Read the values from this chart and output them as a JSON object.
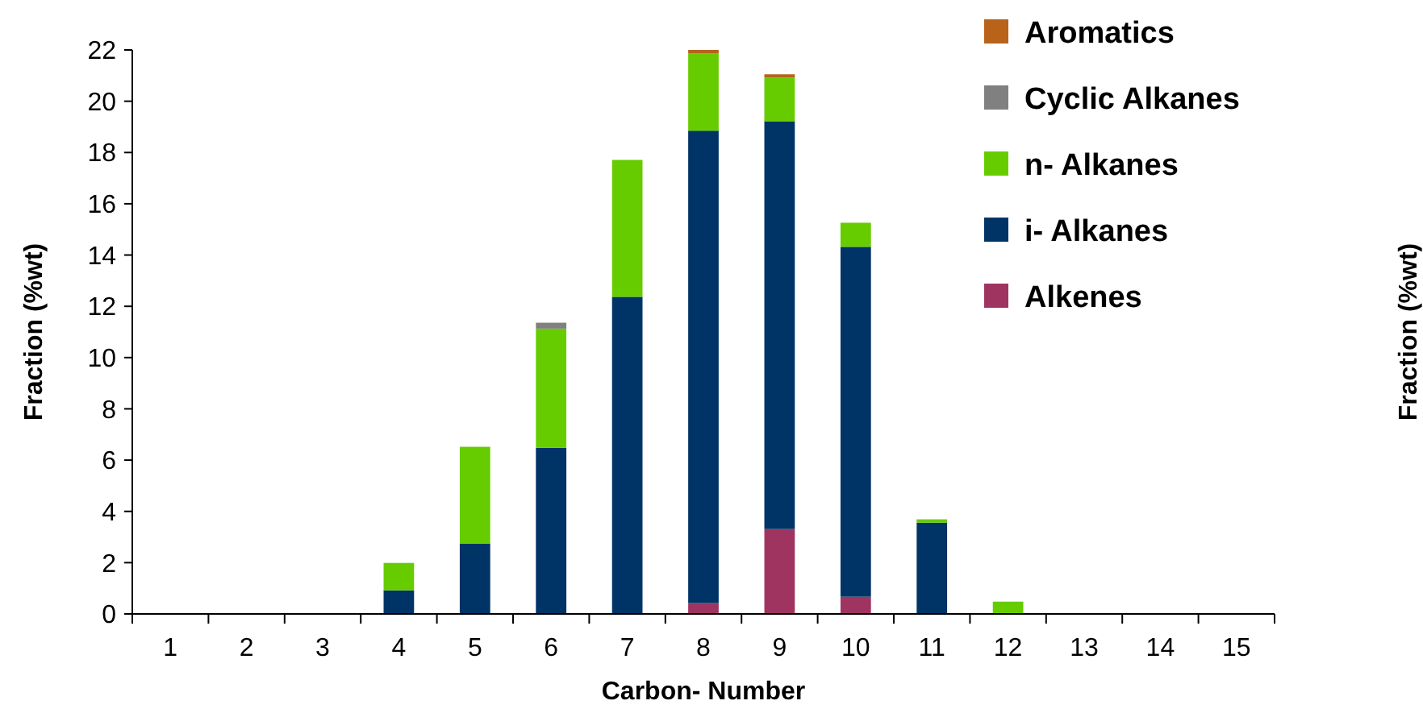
{
  "chart_data": {
    "type": "bar",
    "stacked": true,
    "xlabel": "Carbon- Number",
    "ylabel": "Fraction (%wt)",
    "y2label": "Fraction (%wt)",
    "categories": [
      "1",
      "2",
      "3",
      "4",
      "5",
      "6",
      "7",
      "8",
      "9",
      "10",
      "11",
      "12",
      "13",
      "14",
      "15"
    ],
    "ylim": [
      0,
      22
    ],
    "yticks": [
      0,
      2,
      4,
      6,
      8,
      10,
      12,
      14,
      16,
      18,
      20,
      22
    ],
    "grid": false,
    "legend": "top right",
    "series": [
      {
        "name": "Alkenes",
        "color": "#a03461",
        "values": [
          0,
          0,
          0,
          0,
          0,
          0,
          0,
          0.42,
          3.31,
          0.67,
          0,
          0,
          0,
          0,
          0
        ]
      },
      {
        "name": "i- Alkanes",
        "color": "#003366",
        "values": [
          0,
          0,
          0,
          0.92,
          2.75,
          6.48,
          12.37,
          18.43,
          15.91,
          13.65,
          3.56,
          0,
          0,
          0,
          0
        ]
      },
      {
        "name": "n- Alkanes",
        "color": "#66cc00",
        "values": [
          0,
          0,
          0,
          1.07,
          3.77,
          4.65,
          5.34,
          3.02,
          1.7,
          0.94,
          0.13,
          0.48,
          0,
          0,
          0
        ]
      },
      {
        "name": "Cyclic Alkanes",
        "color": "#808080",
        "values": [
          0,
          0,
          0,
          0,
          0,
          0.23,
          0,
          0,
          0,
          0,
          0,
          0,
          0,
          0,
          0
        ]
      },
      {
        "name": "Aromatics",
        "color": "#b8621a",
        "values": [
          0,
          0,
          0,
          0,
          0,
          0,
          0,
          0.13,
          0.13,
          0,
          0,
          0,
          0,
          0,
          0
        ]
      }
    ]
  }
}
